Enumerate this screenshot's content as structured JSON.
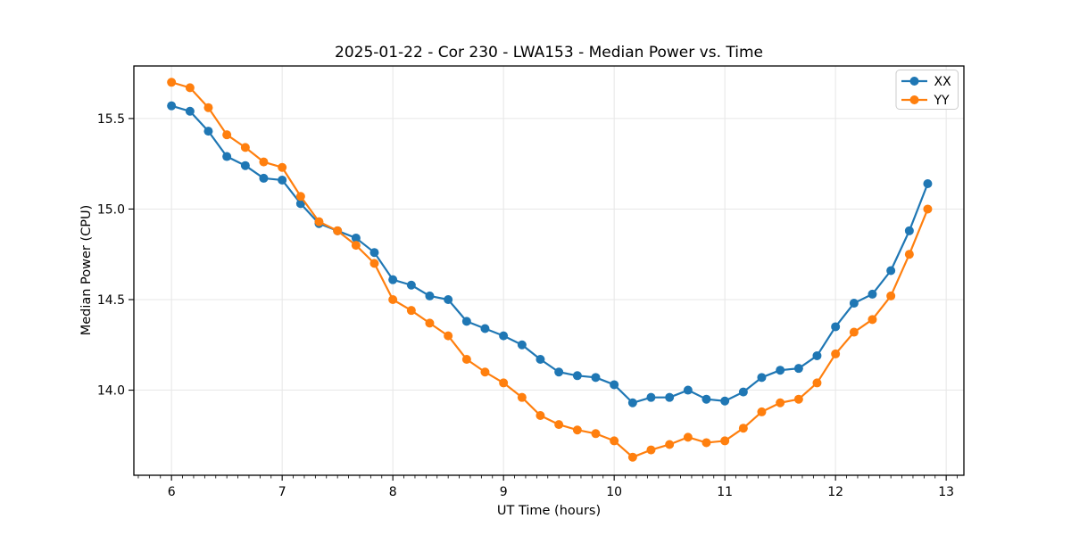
{
  "chart_data": {
    "type": "line",
    "title": "2025-01-22 - Cor 230 - LWA153 - Median Power vs. Time",
    "xlabel": "UT Time (hours)",
    "ylabel": "Median Power (CPU)",
    "x": [
      6.0,
      6.167,
      6.333,
      6.5,
      6.667,
      6.833,
      7.0,
      7.167,
      7.333,
      7.5,
      7.667,
      7.833,
      8.0,
      8.167,
      8.333,
      8.5,
      8.667,
      8.833,
      9.0,
      9.167,
      9.333,
      9.5,
      9.667,
      9.833,
      10.0,
      10.167,
      10.333,
      10.5,
      10.667,
      10.833,
      11.0,
      11.167,
      11.333,
      11.5,
      11.667,
      11.833,
      12.0,
      12.167,
      12.333,
      12.5,
      12.667,
      12.833
    ],
    "series": [
      {
        "name": "XX",
        "color": "#1f77b4",
        "values": [
          15.57,
          15.54,
          15.43,
          15.29,
          15.24,
          15.17,
          15.16,
          15.03,
          14.92,
          14.88,
          14.84,
          14.76,
          14.61,
          14.58,
          14.52,
          14.5,
          14.38,
          14.34,
          14.3,
          14.25,
          14.17,
          14.1,
          14.08,
          14.07,
          14.03,
          13.93,
          13.96,
          13.96,
          14.0,
          13.95,
          13.94,
          13.99,
          14.07,
          14.11,
          14.12,
          14.19,
          14.35,
          14.48,
          14.53,
          14.66,
          14.88,
          15.14
        ]
      },
      {
        "name": "YY",
        "color": "#ff7f0e",
        "values": [
          15.7,
          15.67,
          15.56,
          15.41,
          15.34,
          15.26,
          15.23,
          15.07,
          14.93,
          14.88,
          14.8,
          14.7,
          14.5,
          14.44,
          14.37,
          14.3,
          14.17,
          14.1,
          14.04,
          13.96,
          13.86,
          13.81,
          13.78,
          13.76,
          13.72,
          13.63,
          13.67,
          13.7,
          13.74,
          13.71,
          13.72,
          13.79,
          13.88,
          13.93,
          13.95,
          14.04,
          14.2,
          14.32,
          14.39,
          14.52,
          14.75,
          15.0
        ]
      }
    ],
    "xlim": [
      5.66,
      13.16
    ],
    "ylim": [
      13.53,
      15.79
    ],
    "xticks": [
      6,
      7,
      8,
      9,
      10,
      11,
      12,
      13
    ],
    "yticks": [
      14.0,
      14.5,
      15.0,
      15.5
    ],
    "minor_xtick_step": 0.1,
    "grid": true,
    "marker": "o",
    "legend": {
      "position": "upper right",
      "entries": [
        "XX",
        "YY"
      ]
    },
    "colors": {
      "grid": "#e7e7e7",
      "spine": "#000000",
      "legend_border": "#cccccc",
      "background": "#ffffff"
    }
  }
}
